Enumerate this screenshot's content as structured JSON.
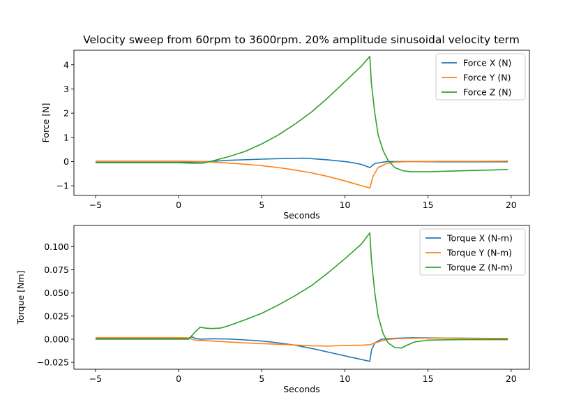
{
  "figure_title": "Velocity sweep from 60rpm to 3600rpm. 20% amplitude sinusoidal velocity term",
  "chart_data": [
    {
      "type": "line",
      "title": "Velocity sweep from 60rpm to 3600rpm. 20% amplitude sinusoidal velocity term",
      "xlabel": "Seconds",
      "ylabel": "Force [N]",
      "xlim": [
        -6.3,
        21.1
      ],
      "ylim": [
        -1.4,
        4.6
      ],
      "xticks": [
        -5,
        0,
        5,
        10,
        15,
        20
      ],
      "xtick_labels": [
        "−5",
        "0",
        "5",
        "10",
        "15",
        "20"
      ],
      "yticks": [
        -1,
        0,
        1,
        2,
        3,
        4
      ],
      "ytick_labels": [
        "−1",
        "0",
        "1",
        "2",
        "3",
        "4"
      ],
      "legend_position": "top-right",
      "grid": false,
      "series": [
        {
          "name": "Force X (N)",
          "color": "#1f77b4",
          "x": [
            -5,
            0,
            1.5,
            3,
            5,
            6,
            7,
            7.5,
            8,
            9,
            10,
            10.5,
            11,
            11.4,
            11.5,
            11.8,
            12.5,
            14,
            16,
            18,
            19.8
          ],
          "y": [
            -0.03,
            -0.03,
            -0.01,
            0.05,
            0.1,
            0.12,
            0.13,
            0.14,
            0.12,
            0.07,
            0.0,
            -0.05,
            -0.12,
            -0.22,
            -0.25,
            -0.08,
            0.0,
            0.0,
            -0.01,
            -0.01,
            -0.01
          ]
        },
        {
          "name": "Force Y (N)",
          "color": "#ff7f0e",
          "x": [
            -5,
            0,
            1.5,
            3,
            4,
            5,
            6,
            7,
            8,
            9,
            10,
            10.5,
            11,
            11.4,
            11.5,
            11.7,
            12,
            12.5,
            13,
            14,
            16,
            18,
            19.8
          ],
          "y": [
            0.02,
            0.02,
            0.0,
            -0.06,
            -0.11,
            -0.17,
            -0.25,
            -0.35,
            -0.47,
            -0.62,
            -0.8,
            -0.9,
            -1.0,
            -1.07,
            -1.1,
            -0.6,
            -0.25,
            -0.08,
            -0.02,
            0.0,
            0.01,
            0.01,
            0.02
          ]
        },
        {
          "name": "Force Z (N)",
          "color": "#2ca02c",
          "x": [
            -5,
            0,
            1.0,
            1.5,
            2,
            3,
            4,
            5,
            6,
            7,
            8,
            9,
            10,
            11,
            11.5,
            11.6,
            11.8,
            12,
            12.3,
            12.6,
            13,
            13.5,
            14,
            15,
            17,
            19.8
          ],
          "y": [
            -0.05,
            -0.05,
            -0.07,
            -0.06,
            0.02,
            0.2,
            0.42,
            0.73,
            1.1,
            1.55,
            2.05,
            2.65,
            3.3,
            3.95,
            4.35,
            3.2,
            2.0,
            1.1,
            0.45,
            0.05,
            -0.25,
            -0.38,
            -0.42,
            -0.42,
            -0.38,
            -0.33
          ]
        }
      ]
    },
    {
      "type": "line",
      "title": "",
      "xlabel": "Seconds",
      "ylabel": "Torque [Nm]",
      "xlim": [
        -6.3,
        21.1
      ],
      "ylim": [
        -0.0325,
        0.123
      ],
      "xticks": [
        -5,
        0,
        5,
        10,
        15,
        20
      ],
      "xtick_labels": [
        "−5",
        "0",
        "5",
        "10",
        "15",
        "20"
      ],
      "yticks": [
        -0.025,
        0.0,
        0.025,
        0.05,
        0.075,
        0.1
      ],
      "ytick_labels": [
        "−0.025",
        "0.000",
        "0.025",
        "0.050",
        "0.075",
        "0.100"
      ],
      "legend_position": "top-right",
      "grid": false,
      "series": [
        {
          "name": "Torque X (N-m)",
          "color": "#1f77b4",
          "x": [
            -5,
            0.5,
            0.8,
            1.0,
            1.3,
            2,
            3,
            4,
            5,
            6,
            7,
            8,
            9,
            10,
            11,
            11.5,
            11.6,
            11.8,
            12.2,
            13,
            14,
            16,
            18,
            19.8
          ],
          "y": [
            0.0005,
            0.0005,
            0.0025,
            0.001,
            0.0,
            0.0005,
            0.0002,
            -0.0008,
            -0.002,
            -0.004,
            -0.0065,
            -0.01,
            -0.014,
            -0.018,
            -0.022,
            -0.024,
            -0.012,
            -0.004,
            0.0,
            0.001,
            0.0015,
            0.0012,
            0.001,
            0.0008
          ]
        },
        {
          "name": "Torque Y (N-m)",
          "color": "#ff7f0e",
          "x": [
            -5,
            0.5,
            1.0,
            2,
            3,
            4,
            5,
            6,
            7,
            8,
            9,
            10,
            11,
            11.5,
            12,
            12.5,
            13,
            14,
            16,
            18,
            19.8
          ],
          "y": [
            0.0015,
            0.0015,
            -0.001,
            -0.002,
            -0.003,
            -0.004,
            -0.0048,
            -0.0055,
            -0.0063,
            -0.0072,
            -0.0075,
            -0.0068,
            -0.0065,
            -0.006,
            -0.003,
            -0.0005,
            0.0005,
            0.001,
            0.0012,
            0.0008,
            0.0005
          ]
        },
        {
          "name": "Torque Z (N-m)",
          "color": "#2ca02c",
          "x": [
            -5,
            0.6,
            0.8,
            1.0,
            1.3,
            1.6,
            2,
            2.5,
            3,
            4,
            5,
            6,
            7,
            8,
            9,
            10,
            11,
            11.5,
            11.6,
            11.8,
            12,
            12.3,
            12.6,
            13,
            13.4,
            13.8,
            14.2,
            15,
            17,
            19.8
          ],
          "y": [
            0.0,
            0.0,
            0.004,
            0.008,
            0.013,
            0.012,
            0.0115,
            0.012,
            0.0145,
            0.021,
            0.028,
            0.037,
            0.047,
            0.058,
            0.072,
            0.087,
            0.103,
            0.115,
            0.085,
            0.05,
            0.025,
            0.006,
            -0.004,
            -0.009,
            -0.0095,
            -0.006,
            -0.003,
            -0.001,
            -0.0005,
            -0.0005
          ]
        }
      ]
    }
  ]
}
